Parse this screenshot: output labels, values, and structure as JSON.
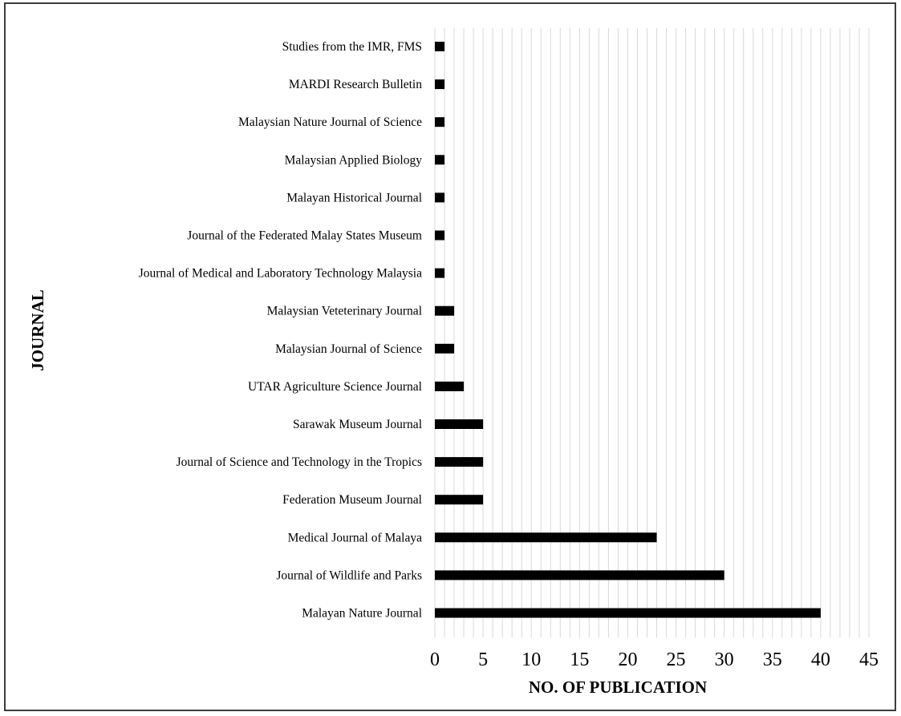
{
  "chart_data": {
    "type": "bar",
    "orientation": "horizontal",
    "title": "",
    "xlabel": "NO. OF PUBLICATION",
    "ylabel": "JOURNAL",
    "xlim": [
      0,
      45
    ],
    "xticks": [
      0,
      5,
      10,
      15,
      20,
      25,
      30,
      35,
      40,
      45
    ],
    "grid": "vertical, every 1 unit",
    "legend": "none",
    "bar_color": "#000000",
    "grid_color": "#d9d9d9",
    "categories": [
      "Studies from the IMR, FMS",
      "MARDI Research Bulletin",
      "Malaysian Nature Journal of Science",
      "Malaysian Applied Biology",
      "Malayan Historical Journal",
      "Journal of the Federated Malay States Museum",
      "Journal of Medical and Laboratory Technology Malaysia",
      "Malaysian Veteterinary Journal",
      "Malaysian Journal of Science",
      "UTAR Agriculture Science Journal",
      "Sarawak Museum Journal",
      "Journal of Science and Technology in the Tropics",
      "Federation Museum Journal",
      "Medical Journal of Malaya",
      "Journal of Wildlife and Parks",
      "Malayan Nature Journal"
    ],
    "values": [
      1,
      1,
      1,
      1,
      1,
      1,
      1,
      2,
      2,
      3,
      5,
      5,
      5,
      23,
      30,
      40
    ]
  }
}
